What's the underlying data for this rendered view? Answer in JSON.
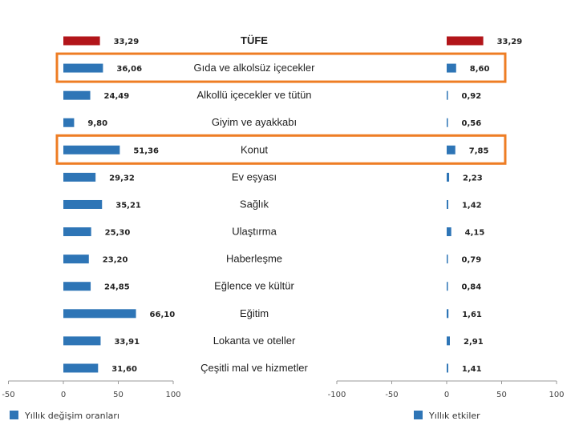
{
  "colors": {
    "bar": "#2e75b6",
    "total_bar": "#b2151a",
    "highlight_box": "#ee7d24",
    "axis": "#999999",
    "text": "#222222"
  },
  "highlighted_categories": [
    "Gıda ve alkolsüz içecekler",
    "Konut"
  ],
  "chart_data": [
    {
      "type": "bar",
      "orientation": "horizontal",
      "categories": [
        "TÜFE",
        "Gıda ve alkolsüz içecekler",
        "Alkollü içecekler ve tütün",
        "Giyim ve ayakkabı",
        "Konut",
        "Ev eşyası",
        "Sağlık",
        "Ulaştırma",
        "Haberleşme",
        "Eğlence ve kültür",
        "Eğitim",
        "Lokanta ve oteller",
        "Çeşitli mal ve hizmetler"
      ],
      "series": [
        {
          "name": "Yıllık değişim oranları",
          "values": [
            33.29,
            36.06,
            24.49,
            9.8,
            51.36,
            29.32,
            35.21,
            25.3,
            23.2,
            24.85,
            66.1,
            33.91,
            31.6
          ]
        }
      ],
      "value_labels": [
        "33,29",
        "36,06",
        "24,49",
        "9,80",
        "51,36",
        "29,32",
        "35,21",
        "25,30",
        "23,20",
        "24,85",
        "66,10",
        "33,91",
        "31,60"
      ],
      "xlim": [
        -50,
        100
      ],
      "xticks": [
        "-50",
        "0",
        "50",
        "100"
      ],
      "legend": "Yıllık değişim oranları",
      "legend_position": "bottom-left",
      "grid": false
    },
    {
      "type": "bar",
      "orientation": "horizontal",
      "categories": [
        "TÜFE",
        "Gıda ve alkolsüz içecekler",
        "Alkollü içecekler ve tütün",
        "Giyim ve ayakkabı",
        "Konut",
        "Ev eşyası",
        "Sağlık",
        "Ulaştırma",
        "Haberleşme",
        "Eğlence ve kültür",
        "Eğitim",
        "Lokanta ve oteller",
        "Çeşitli mal ve hizmetler"
      ],
      "series": [
        {
          "name": "Yıllık etkiler",
          "values": [
            33.29,
            8.6,
            0.92,
            0.56,
            7.85,
            2.23,
            1.42,
            4.15,
            0.79,
            0.84,
            1.61,
            2.91,
            1.41
          ]
        }
      ],
      "value_labels": [
        "33,29",
        "8,60",
        "0,92",
        "0,56",
        "7,85",
        "2,23",
        "1,42",
        "4,15",
        "0,79",
        "0,84",
        "1,61",
        "2,91",
        "1,41"
      ],
      "xlim": [
        -100,
        100
      ],
      "xticks": [
        "-100",
        "-50",
        "0",
        "50",
        "100"
      ],
      "legend": "Yıllık etkiler",
      "legend_position": "bottom-right",
      "grid": false
    }
  ]
}
